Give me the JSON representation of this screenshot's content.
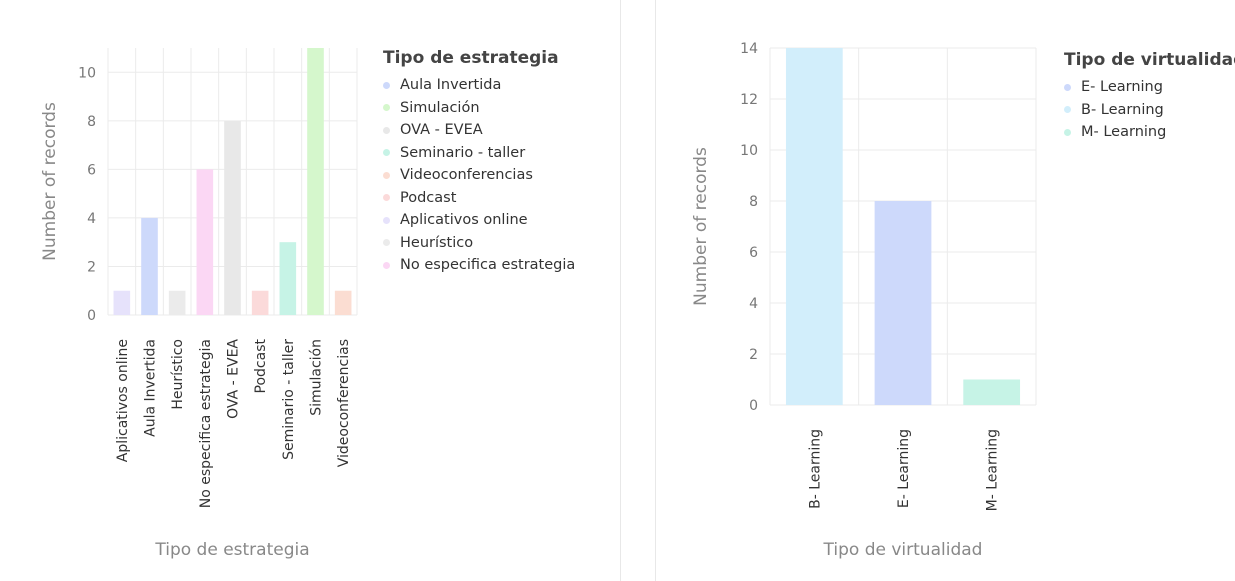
{
  "chart_data": [
    {
      "type": "bar",
      "title": "",
      "xlabel": "Tipo de estrategia",
      "ylabel": "Number of records",
      "ylim": [
        0,
        11
      ],
      "yticks": [
        0,
        2,
        4,
        6,
        8,
        10
      ],
      "grid": true,
      "categories": [
        "Aplicativos online",
        "Aula Invertida",
        "Heurístico",
        "No especifica estrategia",
        "OVA - EVEA",
        "Podcast",
        "Seminario - taller",
        "Simulación",
        "Videoconferencias"
      ],
      "values": [
        1,
        4,
        1,
        6,
        8,
        1,
        3,
        11,
        1
      ],
      "colors": [
        "#e6e2fb",
        "#cdd9fb",
        "#ebebeb",
        "#fbd7f4",
        "#e8e8e8",
        "#fbdada",
        "#c6f3e6",
        "#d5f7cc",
        "#fbddd2"
      ],
      "legend": {
        "title": "Tipo de estrategia",
        "placement": "right",
        "items": [
          {
            "label": "Aula Invertida",
            "color": "#cdd9fb"
          },
          {
            "label": "Simulación",
            "color": "#d5f7cc"
          },
          {
            "label": "OVA - EVEA",
            "color": "#e8e8e8"
          },
          {
            "label": "Seminario - taller",
            "color": "#c6f3e6"
          },
          {
            "label": "Videoconferencias",
            "color": "#fbddd2"
          },
          {
            "label": "Podcast",
            "color": "#fbdada"
          },
          {
            "label": "Aplicativos online",
            "color": "#e6e2fb"
          },
          {
            "label": "Heurístico",
            "color": "#ebebeb"
          },
          {
            "label": "No especifica estrategia",
            "color": "#fbd7f4"
          }
        ]
      }
    },
    {
      "type": "bar",
      "title": "",
      "xlabel": "Tipo de virtualidad",
      "ylabel": "Number of records",
      "ylim": [
        0,
        14
      ],
      "yticks": [
        0,
        2,
        4,
        6,
        8,
        10,
        12,
        14
      ],
      "grid": true,
      "categories": [
        "B- Learning",
        "E- Learning",
        "M- Learning"
      ],
      "values": [
        14,
        8,
        1
      ],
      "colors": [
        "#d2eefb",
        "#cdd9fb",
        "#c6f3e6"
      ],
      "legend": {
        "title": "Tipo de virtualidad",
        "placement": "right",
        "items": [
          {
            "label": "E- Learning",
            "color": "#cdd9fb"
          },
          {
            "label": "B- Learning",
            "color": "#d2eefb"
          },
          {
            "label": "M- Learning",
            "color": "#c6f3e6"
          }
        ]
      }
    }
  ]
}
